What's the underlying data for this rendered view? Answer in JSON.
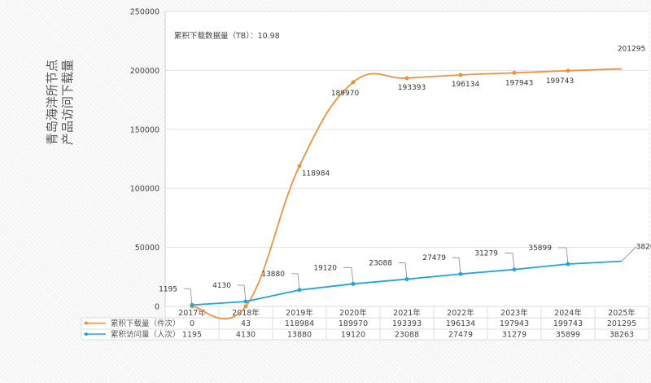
{
  "chart_data": {
    "type": "line",
    "title": "",
    "ylabel": [
      "青岛海洋所节点",
      "产品访问下载量"
    ],
    "annotation": "累积下载数据量（TB）：10.98",
    "categories": [
      "2017年",
      "2018年",
      "2019年",
      "2020年",
      "2021年",
      "2022年",
      "2023年",
      "2024年",
      "2025年"
    ],
    "ylim": [
      0,
      250000
    ],
    "yticks": [
      "0",
      "50000",
      "100000",
      "150000",
      "200000",
      "250000"
    ],
    "grid": true,
    "legend": "table-bottom",
    "series": [
      {
        "name": "累积下载量（件次）",
        "color": "#f0923c",
        "smooth": true,
        "values": [
          0,
          43,
          118984,
          189970,
          193393,
          196134,
          197943,
          199743,
          201295
        ],
        "labels": [
          "0",
          "43",
          "118984",
          "189970",
          "193393",
          "196134",
          "197943",
          "199743",
          "201295"
        ]
      },
      {
        "name": "累积访问量（人次）",
        "color": "#1ea6dc",
        "smooth": false,
        "values": [
          1195,
          4130,
          13880,
          19120,
          23088,
          27479,
          31279,
          35899,
          38263
        ],
        "labels": [
          "1195",
          "4130",
          "13880",
          "19120",
          "23088",
          "27479",
          "31279",
          "35899",
          "38263"
        ]
      }
    ]
  }
}
